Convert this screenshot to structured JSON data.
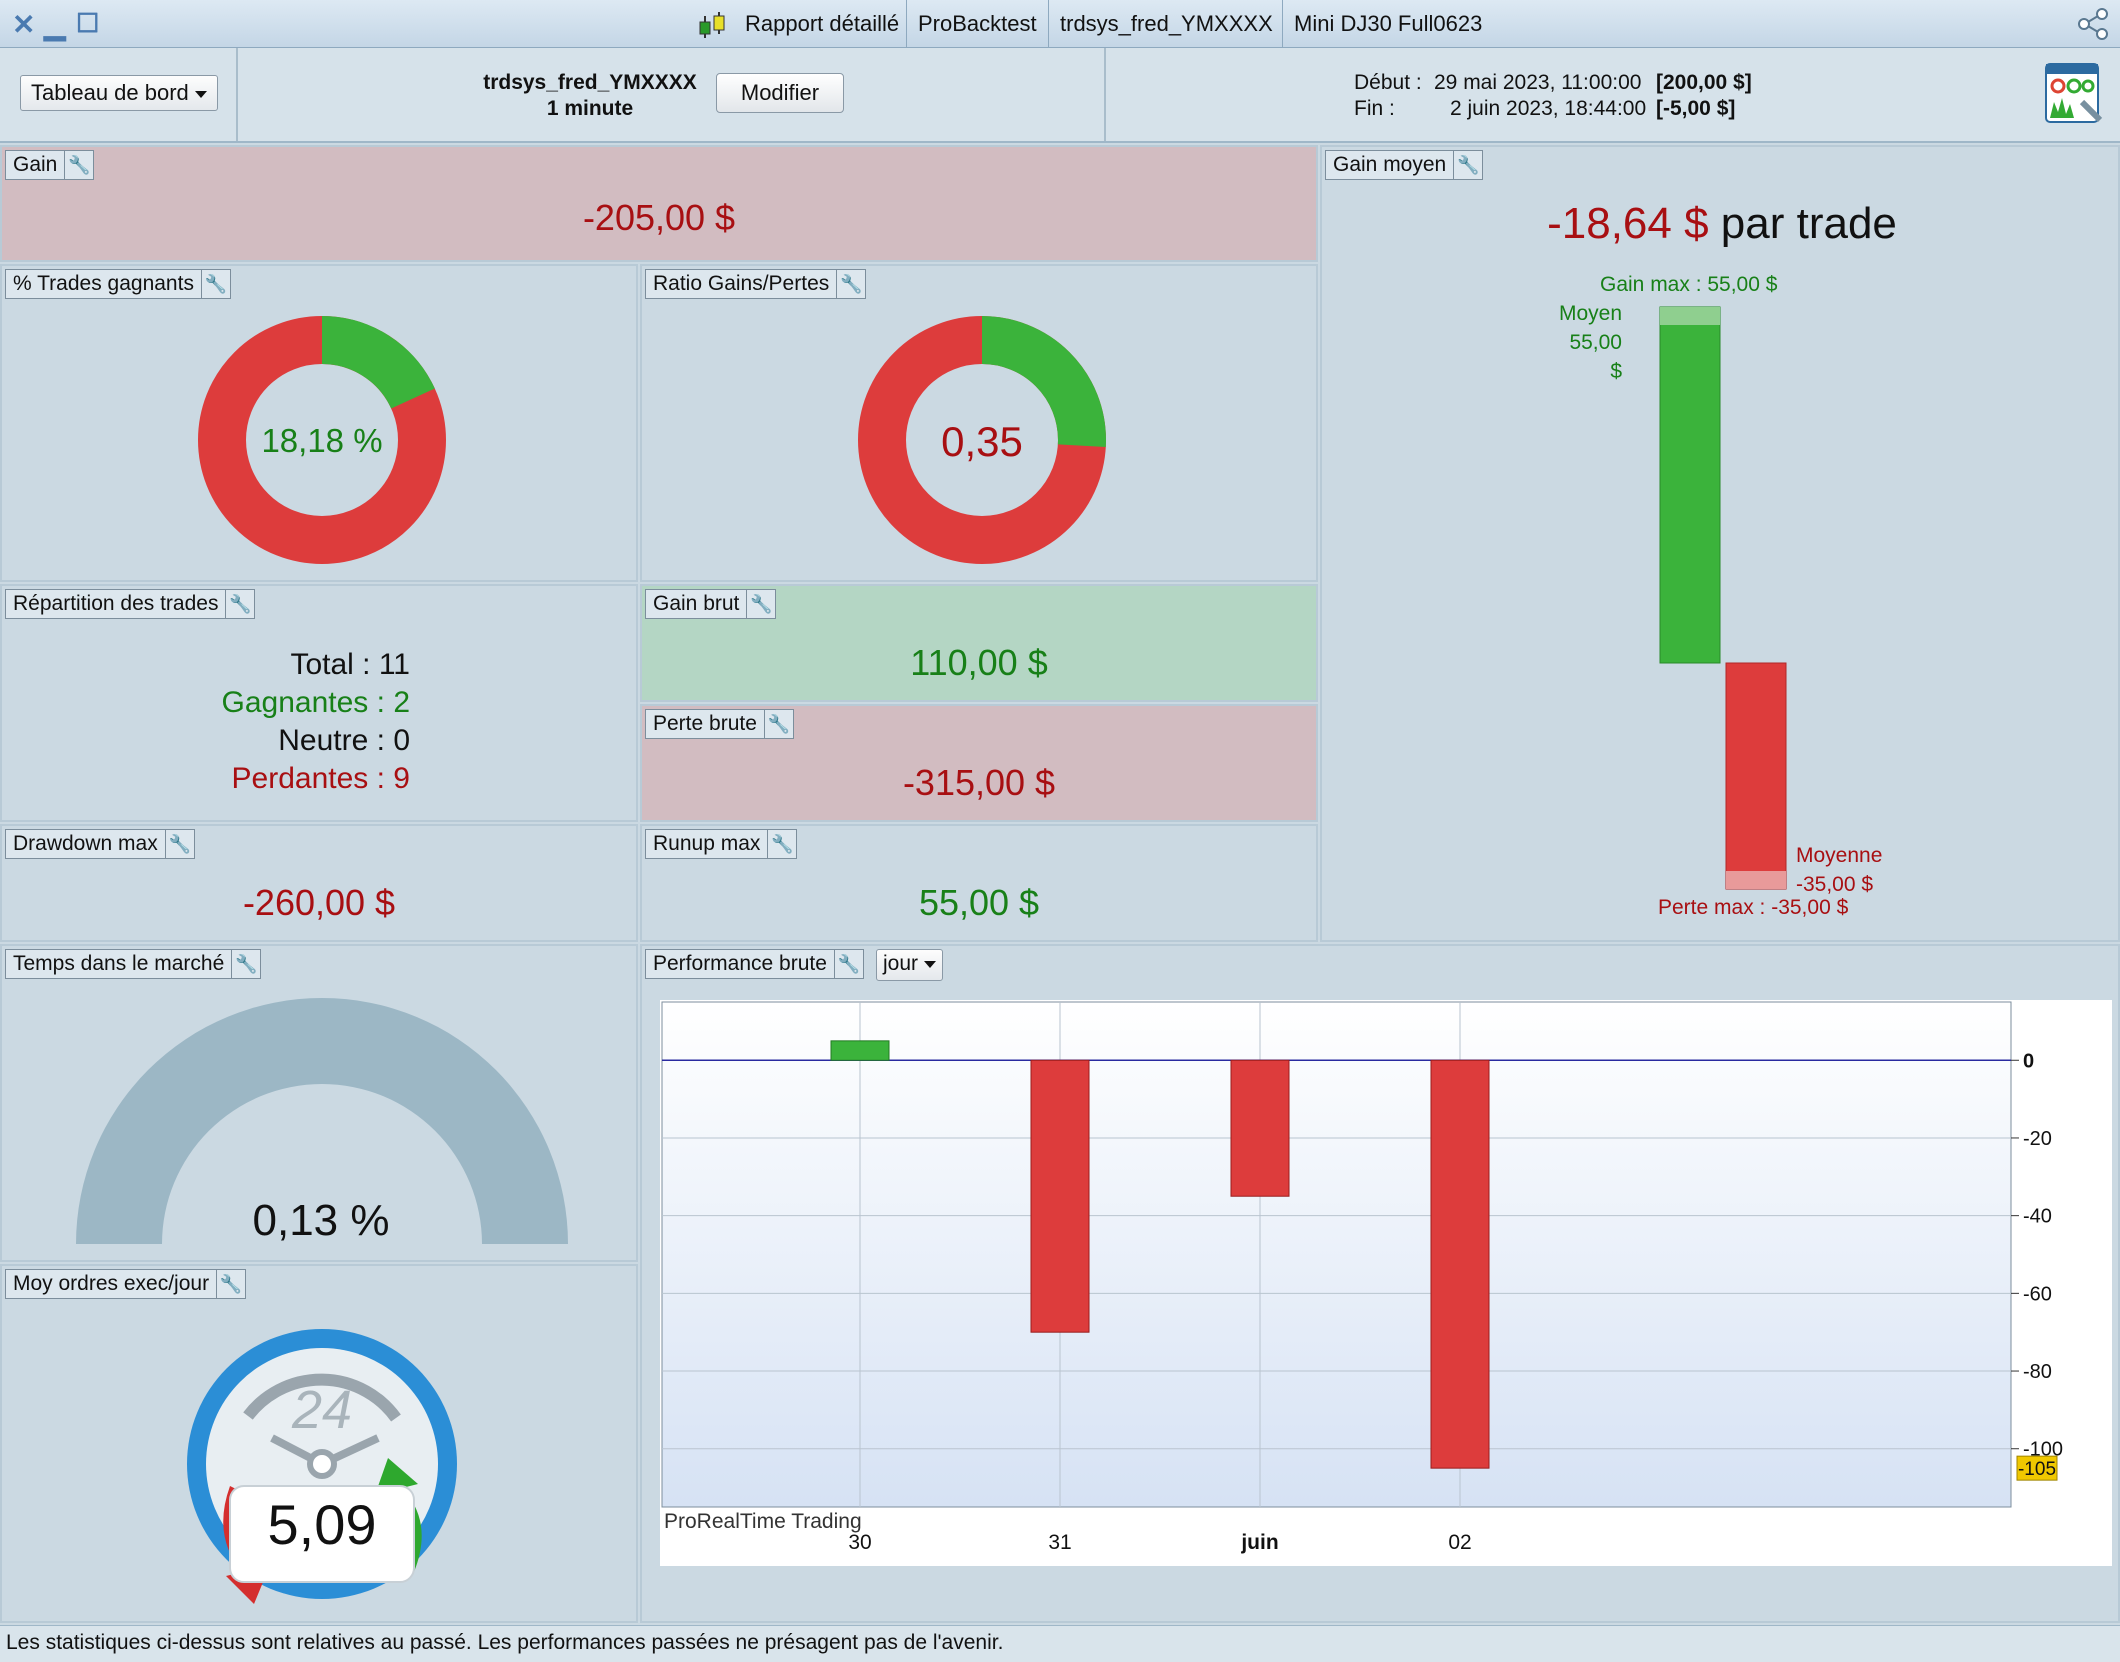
{
  "titlebar": {
    "tabs": [
      "Rapport détaillé",
      "ProBacktest",
      "trdsys_fred_YMXXXX",
      "Mini DJ30 Full0623"
    ]
  },
  "header": {
    "dashboard_select": "Tableau de bord",
    "system_name": "trdsys_fred_YMXXXX",
    "timeframe": "1 minute",
    "modify_label": "Modifier",
    "start_label": "Début :",
    "start_date": "29 mai 2023, 11:00:00",
    "start_value": "[200,00 $]",
    "end_label": "Fin :",
    "end_date": "2 juin 2023, 18:44:00",
    "end_value": "[-5,00 $]"
  },
  "gain": {
    "label": "Gain",
    "value": "-205,00 $"
  },
  "winning_trades": {
    "label": "% Trades gagnants",
    "value": "18,18 %",
    "fraction": 0.1818
  },
  "ratio": {
    "label": "Ratio Gains/Pertes",
    "value": "0,35",
    "fraction": 0.259
  },
  "distribution": {
    "label": "Répartition des trades",
    "total": "Total : 11",
    "winning": "Gagnantes : 2",
    "neutral": "Neutre : 0",
    "losing": "Perdantes : 9"
  },
  "gross_gain": {
    "label": "Gain brut",
    "value": "110,00 $"
  },
  "gross_loss": {
    "label": "Perte brute",
    "value": "-315,00 $"
  },
  "drawdown": {
    "label": "Drawdown max",
    "value": "-260,00 $"
  },
  "runup": {
    "label": "Runup max",
    "value": "55,00 $"
  },
  "avg_gain": {
    "label": "Gain moyen",
    "value": "-18,64 $",
    "suffix": " par trade",
    "gain_max": "Gain max : 55,00 $",
    "avg_win_label": "Moyen",
    "avg_win_value": "55,00 $",
    "avg_loss_label": "Moyenne",
    "avg_loss_value": "-35,00 $",
    "loss_max": "Perte max : -35,00 $",
    "win_value": 55,
    "loss_value": -35
  },
  "time_in_market": {
    "label": "Temps dans le marché",
    "value": "0,13 %",
    "fraction": 0.0013
  },
  "orders": {
    "label": "Moy ordres exec/jour",
    "value": "5,09",
    "clock_number": "24"
  },
  "performance": {
    "label": "Performance brute",
    "period": "jour",
    "watermark": "ProRealTime Trading"
  },
  "chart_data": {
    "type": "bar",
    "categories": [
      "30",
      "31",
      "juin",
      "02"
    ],
    "values": [
      5,
      -70,
      -35,
      -105
    ],
    "ylim": [
      -115,
      15
    ],
    "yticks": [
      0,
      -20,
      -40,
      -60,
      -80,
      -100
    ],
    "last_value_label": "-105",
    "colors": {
      "positive": "#3bb33b",
      "negative": "#dd3c3c"
    }
  },
  "footer": "Les statistiques ci-dessus sont relatives au passé. Les performances passées ne présagent pas de l'avenir."
}
